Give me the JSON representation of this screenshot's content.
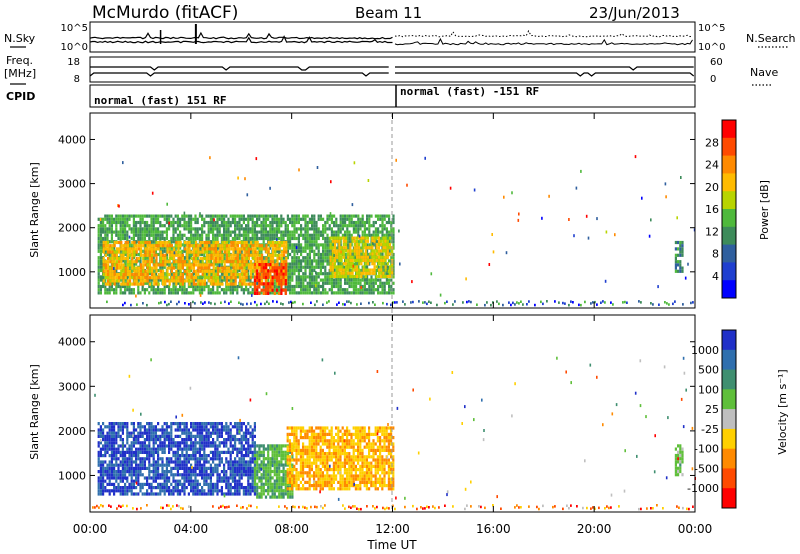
{
  "header": {
    "station": "McMurdo (fitACF)",
    "beam": "Beam 11",
    "date": "23/Jun/2013"
  },
  "left_labels": {
    "nsky": "N.Sky",
    "freq_line1": "Freq.",
    "freq_line2": "[MHz]",
    "cpid": "CPID"
  },
  "right_labels": {
    "nsearch": "N.Search",
    "nave": "Nave"
  },
  "noise_panel": {
    "left_ticks": [
      "10^5",
      "10^0"
    ],
    "right_ticks": [
      "10^5",
      "10^0"
    ]
  },
  "freq_panel": {
    "left_ticks": [
      "18",
      "8"
    ],
    "right_ticks": [
      "60",
      "0"
    ]
  },
  "cpid_panel": {
    "segments": [
      "normal (fast) 151 RF",
      "normal (fast) -151 RF"
    ]
  },
  "power_colorbar": {
    "label": "Power [dB]",
    "ticks": [
      "28",
      "24",
      "20",
      "16",
      "12",
      "8",
      "4"
    ],
    "colors": [
      "#ff0000",
      "#ff4a00",
      "#ff8a00",
      "#ffbb00",
      "#b8d400",
      "#4fb93c",
      "#3d8b5a",
      "#2f5f9e",
      "#1f3fcf",
      "#0000ff"
    ]
  },
  "velocity_colorbar": {
    "label": "Velocity [m s⁻¹]",
    "ticks": [
      "1000",
      "500",
      "100",
      "25",
      "-25",
      "-100",
      "-500",
      "-1000"
    ],
    "colors": [
      "#2030c8",
      "#2f6fae",
      "#3f8f70",
      "#5fbf3a",
      "#bfbfbf",
      "#ffd000",
      "#ff8a00",
      "#ff4a00",
      "#ff0000"
    ]
  },
  "chart_data": {
    "type": "heatmap",
    "xlabel": "Time UT",
    "x_ticks": [
      "00:00",
      "04:00",
      "08:00",
      "12:00",
      "16:00",
      "20:00",
      "00:00"
    ],
    "x_range_hours": [
      0,
      24
    ],
    "panels": [
      {
        "name": "Power",
        "ylabel": "Slant Range [km]",
        "y_ticks": [
          "4000",
          "3000",
          "2000",
          "1000"
        ],
        "ylim": [
          180,
          4600
        ],
        "colorbar_range": [
          0,
          30
        ],
        "regions": [
          {
            "t_start": 0.3,
            "t_end": 12.0,
            "r_min": 550,
            "r_max": 2300,
            "value": 12
          },
          {
            "t_start": 0.5,
            "t_end": 7.8,
            "r_min": 700,
            "r_max": 1700,
            "value": 20
          },
          {
            "t_start": 6.5,
            "t_end": 7.8,
            "r_min": 500,
            "r_max": 1200,
            "value": 26
          },
          {
            "t_start": 9.5,
            "t_end": 12.0,
            "r_min": 900,
            "r_max": 1800,
            "value": 18
          },
          {
            "t_start": 23.2,
            "t_end": 23.5,
            "r_min": 1000,
            "r_max": 1700,
            "value": 10
          }
        ]
      },
      {
        "name": "Velocity",
        "ylabel": "Slant Range [km]",
        "y_ticks": [
          "4000",
          "3000",
          "2000",
          "1000"
        ],
        "ylim": [
          180,
          4600
        ],
        "colorbar_range": [
          -1000,
          1000
        ],
        "regions": [
          {
            "t_start": 0.3,
            "t_end": 6.5,
            "r_min": 550,
            "r_max": 2200,
            "value": 800
          },
          {
            "t_start": 6.5,
            "t_end": 8.0,
            "r_min": 500,
            "r_max": 1700,
            "value": 300
          },
          {
            "t_start": 7.8,
            "t_end": 12.0,
            "r_min": 700,
            "r_max": 2100,
            "value": -300
          },
          {
            "t_start": 23.2,
            "t_end": 23.5,
            "r_min": 1000,
            "r_max": 1700,
            "value": 200
          }
        ]
      }
    ]
  }
}
